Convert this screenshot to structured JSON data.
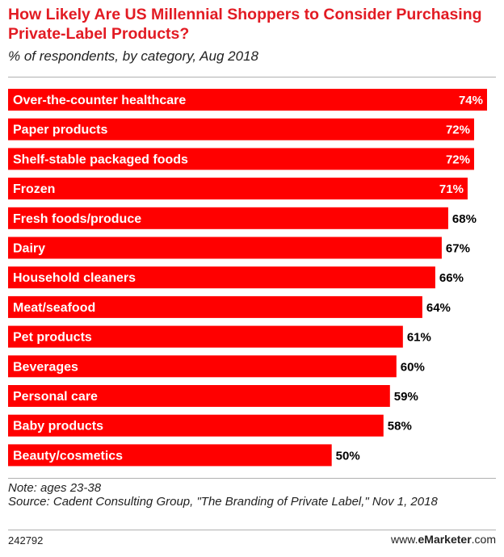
{
  "chart_data": {
    "type": "bar",
    "orientation": "horizontal",
    "title": "How Likely Are US Millennial Shoppers to Consider Purchasing Private-Label Products?",
    "subtitle": "% of respondents, by category, Aug 2018",
    "categories": [
      "Over-the-counter healthcare",
      "Paper products",
      "Shelf-stable packaged foods",
      "Frozen",
      "Fresh foods/produce",
      "Dairy",
      "Household cleaners",
      "Meat/seafood",
      "Pet products",
      "Beverages",
      "Personal care",
      "Baby products",
      "Beauty/cosmetics"
    ],
    "values": [
      74,
      72,
      72,
      71,
      68,
      67,
      66,
      64,
      61,
      60,
      59,
      58,
      50
    ],
    "value_labels": [
      "74%",
      "72%",
      "72%",
      "71%",
      "68%",
      "67%",
      "66%",
      "64%",
      "61%",
      "60%",
      "59%",
      "58%",
      "50%"
    ],
    "xlim": [
      0,
      74
    ],
    "grid": false,
    "bar_color": "#ff0000"
  },
  "notes": {
    "note": "Note: ages 23-38",
    "source": "Source: Cadent Consulting Group, \"The Branding of Private Label,\" Nov 1, 2018"
  },
  "footer": {
    "id": "242792",
    "brand_prefix": "www.",
    "brand_e": "e",
    "brand_name": "Marketer",
    "brand_suffix": ".com"
  }
}
